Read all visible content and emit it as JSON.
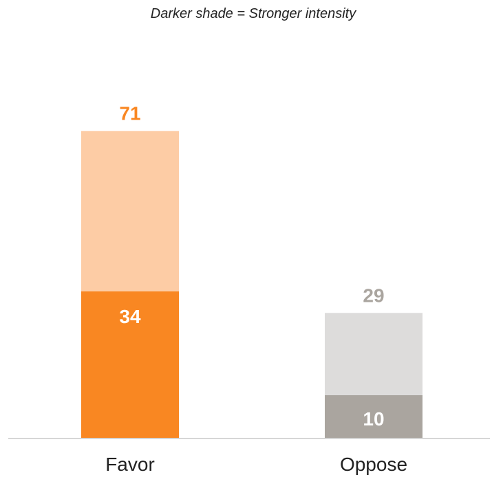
{
  "chart_data": {
    "type": "bar",
    "stacked": true,
    "subtitle": "Darker shade = Stronger intensity",
    "categories": [
      "Favor",
      "Oppose"
    ],
    "totals": [
      71,
      29
    ],
    "series": [
      {
        "values": [
          34,
          10
        ],
        "colors": [
          "#f98722",
          "#aaa59f"
        ]
      },
      {
        "values": [
          37,
          19
        ],
        "colors": [
          "#fdcca5",
          "#dddcdb"
        ]
      }
    ],
    "total_label_colors": [
      "#f98722",
      "#aaa59f"
    ],
    "ylim": [
      0,
      100
    ],
    "grid": false,
    "legend": "none"
  }
}
